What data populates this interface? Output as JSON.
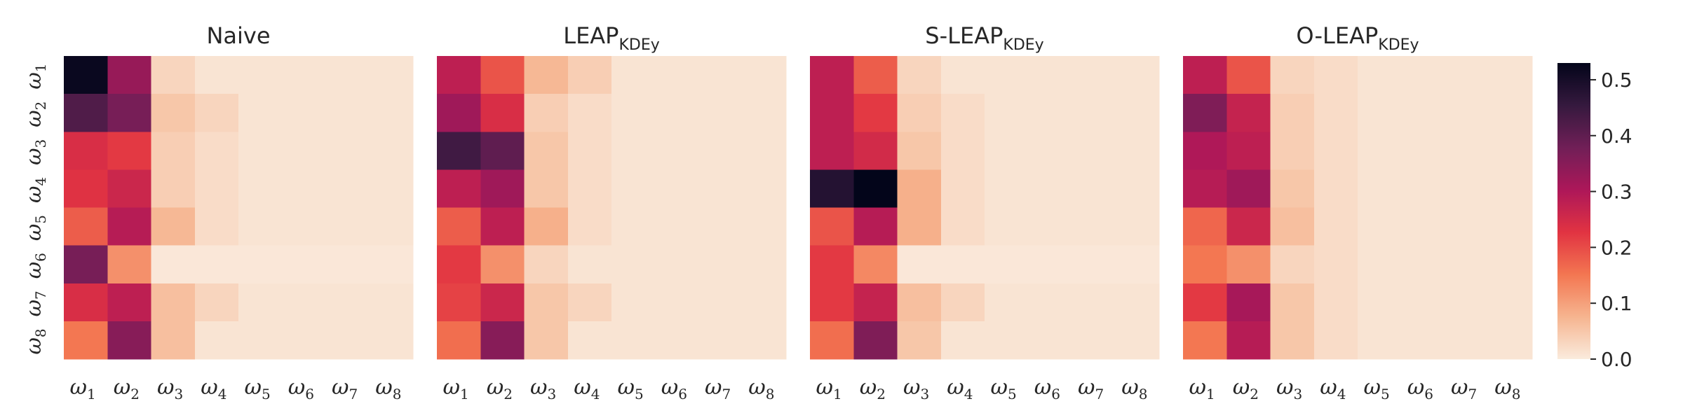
{
  "chart_data": {
    "type": "heatmap",
    "panels": [
      {
        "title": {
          "main": "Naive",
          "sub": ""
        },
        "values": [
          [
            0.52,
            0.33,
            0.03,
            0.01,
            0.01,
            0.01,
            0.01,
            0.01
          ],
          [
            0.42,
            0.37,
            0.05,
            0.03,
            0.01,
            0.01,
            0.01,
            0.01
          ],
          [
            0.24,
            0.22,
            0.04,
            0.02,
            0.01,
            0.01,
            0.01,
            0.01
          ],
          [
            0.23,
            0.26,
            0.04,
            0.02,
            0.01,
            0.01,
            0.01,
            0.01
          ],
          [
            0.18,
            0.29,
            0.07,
            0.02,
            0.01,
            0.01,
            0.01,
            0.01
          ],
          [
            0.37,
            0.12,
            0.005,
            0.005,
            0.005,
            0.005,
            0.005,
            0.005
          ],
          [
            0.24,
            0.28,
            0.06,
            0.03,
            0.01,
            0.01,
            0.01,
            0.01
          ],
          [
            0.15,
            0.35,
            0.06,
            0.01,
            0.01,
            0.01,
            0.01,
            0.01
          ]
        ]
      },
      {
        "title": {
          "main": "LEAP",
          "sub": "KDEy"
        },
        "values": [
          [
            0.28,
            0.19,
            0.07,
            0.04,
            0.01,
            0.01,
            0.01,
            0.01
          ],
          [
            0.32,
            0.24,
            0.04,
            0.02,
            0.01,
            0.01,
            0.01,
            0.01
          ],
          [
            0.44,
            0.4,
            0.05,
            0.02,
            0.01,
            0.01,
            0.01,
            0.01
          ],
          [
            0.28,
            0.32,
            0.05,
            0.02,
            0.01,
            0.01,
            0.01,
            0.01
          ],
          [
            0.18,
            0.28,
            0.08,
            0.02,
            0.01,
            0.01,
            0.01,
            0.01
          ],
          [
            0.22,
            0.12,
            0.03,
            0.01,
            0.01,
            0.01,
            0.01,
            0.01
          ],
          [
            0.21,
            0.26,
            0.05,
            0.03,
            0.01,
            0.01,
            0.01,
            0.01
          ],
          [
            0.16,
            0.35,
            0.05,
            0.01,
            0.01,
            0.01,
            0.01,
            0.01
          ]
        ]
      },
      {
        "title": {
          "main": "S-LEAP",
          "sub": "KDEy"
        },
        "values": [
          [
            0.28,
            0.18,
            0.03,
            0.01,
            0.01,
            0.01,
            0.01,
            0.01
          ],
          [
            0.28,
            0.22,
            0.04,
            0.02,
            0.01,
            0.01,
            0.01,
            0.01
          ],
          [
            0.28,
            0.25,
            0.05,
            0.02,
            0.01,
            0.01,
            0.01,
            0.01
          ],
          [
            0.48,
            0.53,
            0.08,
            0.02,
            0.01,
            0.01,
            0.01,
            0.01
          ],
          [
            0.19,
            0.29,
            0.08,
            0.02,
            0.01,
            0.01,
            0.01,
            0.01
          ],
          [
            0.22,
            0.13,
            0.005,
            0.005,
            0.005,
            0.005,
            0.005,
            0.005
          ],
          [
            0.22,
            0.27,
            0.06,
            0.03,
            0.01,
            0.01,
            0.01,
            0.01
          ],
          [
            0.16,
            0.36,
            0.05,
            0.01,
            0.01,
            0.01,
            0.01,
            0.01
          ]
        ]
      },
      {
        "title": {
          "main": "O-LEAP",
          "sub": "KDEy"
        },
        "values": [
          [
            0.28,
            0.19,
            0.03,
            0.02,
            0.01,
            0.01,
            0.01,
            0.01
          ],
          [
            0.36,
            0.27,
            0.04,
            0.02,
            0.01,
            0.01,
            0.01,
            0.01
          ],
          [
            0.3,
            0.28,
            0.04,
            0.02,
            0.01,
            0.01,
            0.01,
            0.01
          ],
          [
            0.29,
            0.32,
            0.05,
            0.02,
            0.01,
            0.01,
            0.01,
            0.01
          ],
          [
            0.17,
            0.26,
            0.06,
            0.02,
            0.01,
            0.01,
            0.01,
            0.01
          ],
          [
            0.15,
            0.12,
            0.03,
            0.02,
            0.01,
            0.01,
            0.01,
            0.01
          ],
          [
            0.22,
            0.31,
            0.05,
            0.02,
            0.01,
            0.01,
            0.01,
            0.01
          ],
          [
            0.15,
            0.29,
            0.05,
            0.02,
            0.01,
            0.01,
            0.01,
            0.01
          ]
        ]
      }
    ],
    "x_tick_labels": [
      {
        "base": "ω",
        "sub": "1"
      },
      {
        "base": "ω",
        "sub": "2"
      },
      {
        "base": "ω",
        "sub": "3"
      },
      {
        "base": "ω",
        "sub": "4"
      },
      {
        "base": "ω",
        "sub": "5"
      },
      {
        "base": "ω",
        "sub": "6"
      },
      {
        "base": "ω",
        "sub": "7"
      },
      {
        "base": "ω",
        "sub": "8"
      }
    ],
    "y_tick_labels": [
      {
        "base": "ω",
        "sub": "1"
      },
      {
        "base": "ω",
        "sub": "2"
      },
      {
        "base": "ω",
        "sub": "3"
      },
      {
        "base": "ω",
        "sub": "4"
      },
      {
        "base": "ω",
        "sub": "5"
      },
      {
        "base": "ω",
        "sub": "6"
      },
      {
        "base": "ω",
        "sub": "7"
      },
      {
        "base": "ω",
        "sub": "8"
      }
    ],
    "colorbar": {
      "range": [
        0.0,
        0.53
      ],
      "ticks": [
        {
          "value": 0.0,
          "label": "0.0"
        },
        {
          "value": 0.1,
          "label": "0.1"
        },
        {
          "value": 0.2,
          "label": "0.2"
        },
        {
          "value": 0.3,
          "label": "0.3"
        },
        {
          "value": 0.4,
          "label": "0.4"
        },
        {
          "value": 0.5,
          "label": "0.5"
        }
      ],
      "colormap": "rocket_r",
      "color_stops": [
        "#faebdd",
        "#f6b48f",
        "#f37651",
        "#e13342",
        "#ad1759",
        "#701f57",
        "#35193e",
        "#03051a"
      ]
    }
  }
}
